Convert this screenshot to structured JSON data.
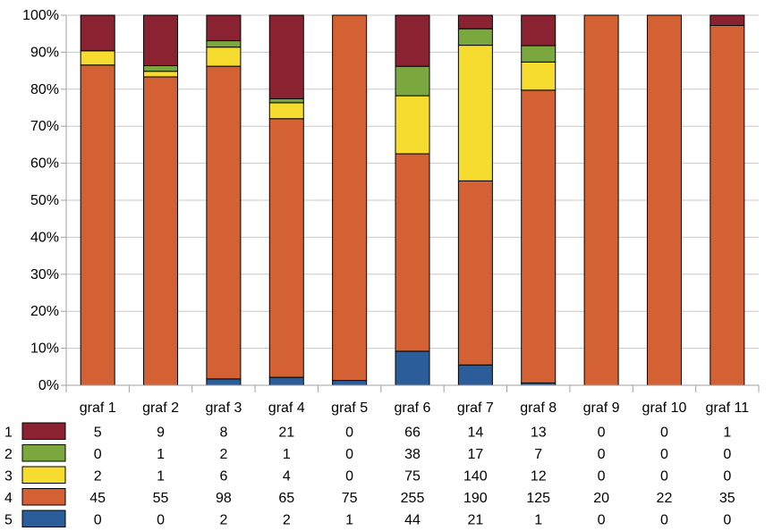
{
  "chart_data": {
    "type": "bar",
    "stacked": "percent",
    "title": "",
    "xlabel": "",
    "ylabel": "",
    "ylim": [
      0,
      100
    ],
    "yticks": [
      "0%",
      "10%",
      "20%",
      "30%",
      "40%",
      "50%",
      "60%",
      "70%",
      "80%",
      "90%",
      "100%"
    ],
    "grid": true,
    "legend": "data-table-left",
    "categories": [
      "graf 1",
      "graf 2",
      "graf 3",
      "graf 4",
      "graf 5",
      "graf 6",
      "graf 7",
      "graf 8",
      "graf 9",
      "graf 10",
      "graf 11"
    ],
    "series": [
      {
        "name": "5",
        "color": "#2b5d9a",
        "values": [
          0,
          0,
          2,
          2,
          1,
          44,
          21,
          1,
          0,
          0,
          0
        ]
      },
      {
        "name": "4",
        "color": "#d46134",
        "values": [
          45,
          55,
          98,
          65,
          75,
          255,
          190,
          125,
          20,
          22,
          35
        ]
      },
      {
        "name": "3",
        "color": "#f6dc2f",
        "values": [
          2,
          1,
          6,
          4,
          0,
          75,
          140,
          12,
          0,
          0,
          0
        ]
      },
      {
        "name": "2",
        "color": "#7aa83e",
        "values": [
          0,
          1,
          2,
          1,
          0,
          38,
          17,
          7,
          0,
          0,
          0
        ]
      },
      {
        "name": "1",
        "color": "#8a2232",
        "values": [
          5,
          9,
          8,
          21,
          0,
          66,
          14,
          13,
          0,
          0,
          1
        ]
      }
    ],
    "table_row_order": [
      "1",
      "2",
      "3",
      "4",
      "5"
    ]
  }
}
